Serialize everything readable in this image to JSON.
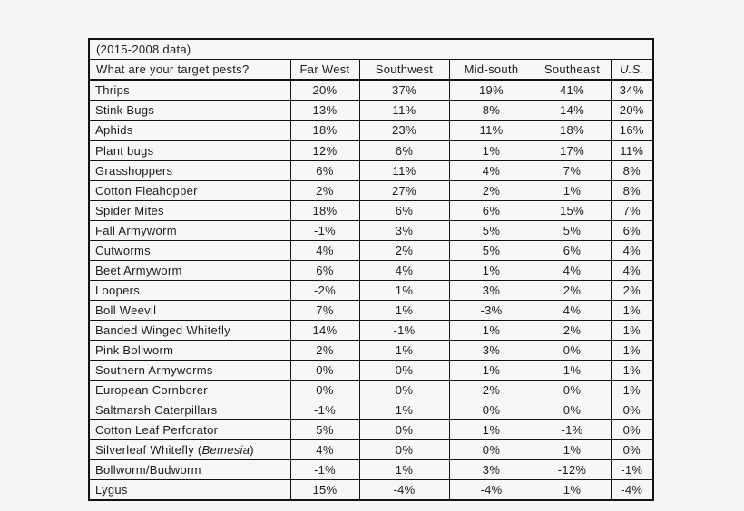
{
  "page": {
    "background_color": "#f5f5f5",
    "table_border_color": "#111111",
    "text_color": "#1c1c1c"
  },
  "chart_data": {
    "type": "table",
    "title": "(2015-2008 data)",
    "question": "What are your target pests?",
    "columns": [
      "Far West",
      "Southwest",
      "Mid-south",
      "Southeast",
      "U.S."
    ],
    "rows": [
      {
        "pest": "Thrips",
        "values": [
          "20%",
          "37%",
          "19%",
          "41%",
          "34%"
        ]
      },
      {
        "pest": "Stink Bugs",
        "values": [
          "13%",
          "11%",
          "8%",
          "14%",
          "20%"
        ]
      },
      {
        "pest": "Aphids",
        "values": [
          "18%",
          "23%",
          "11%",
          "18%",
          "16%"
        ],
        "separator_below": true
      },
      {
        "pest": "Plant bugs",
        "values": [
          "12%",
          "6%",
          "1%",
          "17%",
          "11%"
        ]
      },
      {
        "pest": "Grasshoppers",
        "values": [
          "6%",
          "11%",
          "4%",
          "7%",
          "8%"
        ]
      },
      {
        "pest": "Cotton Fleahopper",
        "values": [
          "2%",
          "27%",
          "2%",
          "1%",
          "8%"
        ]
      },
      {
        "pest": "Spider Mites",
        "values": [
          "18%",
          "6%",
          "6%",
          "15%",
          "7%"
        ]
      },
      {
        "pest": "Fall Armyworm",
        "values": [
          "-1%",
          "3%",
          "5%",
          "5%",
          "6%"
        ]
      },
      {
        "pest": "Cutworms",
        "values": [
          "4%",
          "2%",
          "5%",
          "6%",
          "4%"
        ]
      },
      {
        "pest": "Beet Armyworm",
        "values": [
          "6%",
          "4%",
          "1%",
          "4%",
          "4%"
        ]
      },
      {
        "pest": "Loopers",
        "values": [
          "-2%",
          "1%",
          "3%",
          "2%",
          "2%"
        ]
      },
      {
        "pest": "Boll Weevil",
        "values": [
          "7%",
          "1%",
          "-3%",
          "4%",
          "1%"
        ]
      },
      {
        "pest": "Banded Winged Whitefly",
        "values": [
          "14%",
          "-1%",
          "1%",
          "2%",
          "1%"
        ]
      },
      {
        "pest": "Pink Bollworm",
        "values": [
          "2%",
          "1%",
          "3%",
          "0%",
          "1%"
        ]
      },
      {
        "pest": "Southern Armyworms",
        "values": [
          "0%",
          "0%",
          "1%",
          "1%",
          "1%"
        ]
      },
      {
        "pest": "European Cornborer",
        "values": [
          "0%",
          "0%",
          "2%",
          "0%",
          "1%"
        ]
      },
      {
        "pest": "Saltmarsh Caterpillars",
        "values": [
          "-1%",
          "1%",
          "0%",
          "0%",
          "0%"
        ]
      },
      {
        "pest": "Cotton Leaf Perforator",
        "values": [
          "5%",
          "0%",
          "1%",
          "-1%",
          "0%"
        ]
      },
      {
        "pest": "Silverleaf Whitefly (*Bemesia*)",
        "values": [
          "4%",
          "0%",
          "0%",
          "1%",
          "0%"
        ]
      },
      {
        "pest": "Bollworm/Budworm",
        "values": [
          "-1%",
          "1%",
          "3%",
          "-12%",
          "-1%"
        ]
      },
      {
        "pest": "Lygus",
        "values": [
          "15%",
          "-4%",
          "-4%",
          "1%",
          "-4%"
        ]
      }
    ]
  }
}
